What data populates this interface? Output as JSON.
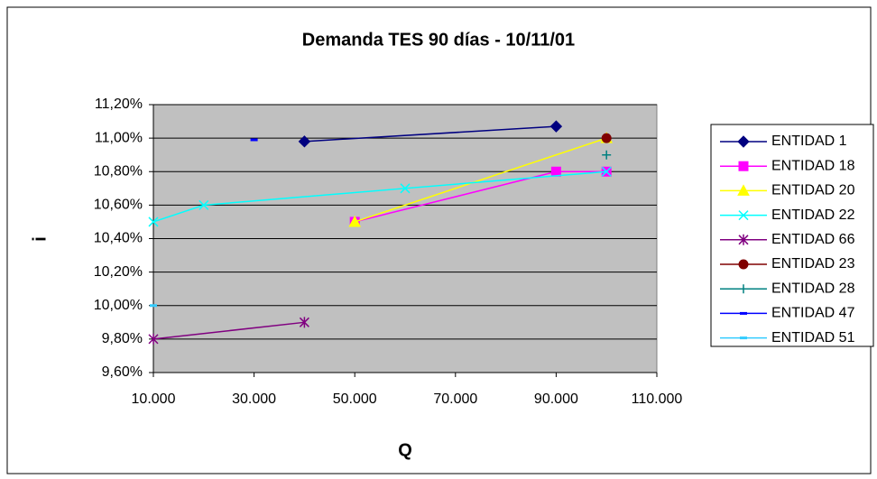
{
  "chart_data": {
    "type": "scatter",
    "title": "Demanda TES 90 días - 10/11/01",
    "x_label": "Q",
    "y_label": "i",
    "xlim": [
      10000,
      110000
    ],
    "xticks": [
      {
        "value": 10000,
        "label": "10.000"
      },
      {
        "value": 30000,
        "label": "30.000"
      },
      {
        "value": 50000,
        "label": "50.000"
      },
      {
        "value": 70000,
        "label": "70.000"
      },
      {
        "value": 90000,
        "label": "90.000"
      },
      {
        "value": 110000,
        "label": "110.000"
      }
    ],
    "ylim": [
      9.6,
      11.2
    ],
    "yticks": [
      {
        "value": 9.6,
        "label": "9,60%"
      },
      {
        "value": 9.8,
        "label": "9,80%"
      },
      {
        "value": 10.0,
        "label": "10,00%"
      },
      {
        "value": 10.2,
        "label": "10,20%"
      },
      {
        "value": 10.4,
        "label": "10,40%"
      },
      {
        "value": 10.6,
        "label": "10,60%"
      },
      {
        "value": 10.8,
        "label": "10,80%"
      },
      {
        "value": 11.0,
        "label": "11,00%"
      },
      {
        "value": 11.2,
        "label": "11,20%"
      }
    ],
    "grid": true,
    "legend": "right",
    "series": [
      {
        "name": "ENTIDAD 1",
        "color": "#000080",
        "marker": "diamond",
        "x": [
          40000,
          90000
        ],
        "values": [
          10.98,
          11.07
        ]
      },
      {
        "name": "ENTIDAD 18",
        "color": "#ff00ff",
        "marker": "square",
        "x": [
          50000,
          90000,
          100000
        ],
        "values": [
          10.5,
          10.8,
          10.8
        ]
      },
      {
        "name": "ENTIDAD 20",
        "color": "#ffff00",
        "marker": "triangle",
        "x": [
          50000,
          100000
        ],
        "values": [
          10.5,
          11.0
        ]
      },
      {
        "name": "ENTIDAD 22",
        "color": "#00ffff",
        "marker": "x",
        "x": [
          10000,
          20000,
          60000,
          100000
        ],
        "values": [
          10.5,
          10.6,
          10.7,
          10.8
        ]
      },
      {
        "name": "ENTIDAD 66",
        "color": "#800080",
        "marker": "star",
        "x": [
          10000,
          40000
        ],
        "values": [
          9.8,
          9.9
        ]
      },
      {
        "name": "ENTIDAD 23",
        "color": "#800000",
        "marker": "circle",
        "x": [
          100000
        ],
        "values": [
          11.0
        ]
      },
      {
        "name": "ENTIDAD 28",
        "color": "#008080",
        "marker": "plus",
        "x": [
          100000
        ],
        "values": [
          10.9
        ]
      },
      {
        "name": "ENTIDAD 47",
        "color": "#0000ff",
        "marker": "dash",
        "x": [
          30000
        ],
        "values": [
          10.99
        ]
      },
      {
        "name": "ENTIDAD 51",
        "color": "#33ccff",
        "marker": "dash",
        "x": [
          10000
        ],
        "values": [
          10.0
        ]
      }
    ]
  }
}
